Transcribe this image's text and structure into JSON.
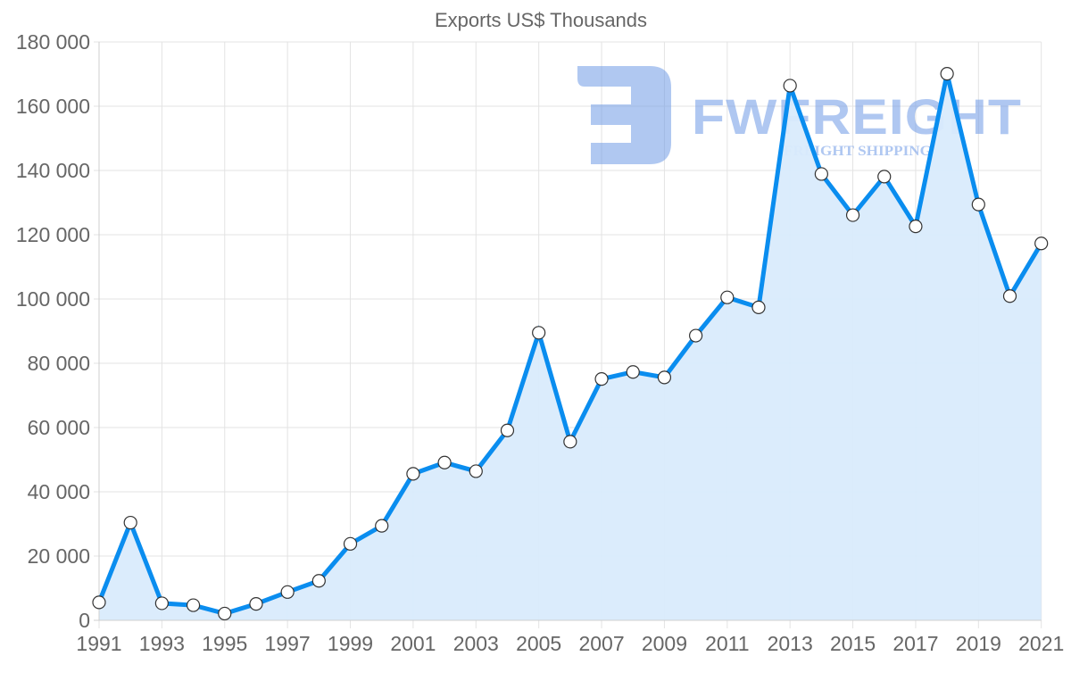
{
  "chart_data": {
    "type": "area",
    "title": "Exports US$ Thousands",
    "xlabel": "",
    "ylabel": "",
    "x": [
      1991,
      1992,
      1993,
      1994,
      1995,
      1996,
      1997,
      1998,
      1999,
      2000,
      2001,
      2002,
      2003,
      2004,
      2005,
      2006,
      2007,
      2008,
      2009,
      2010,
      2011,
      2012,
      2013,
      2014,
      2015,
      2016,
      2017,
      2018,
      2019,
      2020,
      2021
    ],
    "series": [
      {
        "name": "Exports US$ Thousands",
        "values": [
          5600,
          30400,
          5300,
          4700,
          2100,
          5100,
          8800,
          12300,
          23800,
          29400,
          45600,
          49100,
          46400,
          59100,
          89500,
          55600,
          75100,
          77300,
          75600,
          88600,
          100500,
          97400,
          166400,
          138900,
          126100,
          138100,
          122600,
          170100,
          129400,
          100900,
          117300
        ]
      }
    ],
    "ylim": [
      0,
      180000
    ],
    "yticks": [
      0,
      20000,
      40000,
      60000,
      80000,
      100000,
      120000,
      140000,
      160000,
      180000
    ],
    "ytick_labels": [
      "0",
      "20 000",
      "40 000",
      "60 000",
      "80 000",
      "100 000",
      "120 000",
      "140 000",
      "160 000",
      "180 000"
    ],
    "xtick_labels": [
      "1991",
      "1993",
      "1995",
      "1997",
      "1999",
      "2001",
      "2003",
      "2005",
      "2007",
      "2009",
      "2011",
      "2013",
      "2015",
      "2017",
      "2019",
      "2021"
    ],
    "grid": true,
    "legend": "none",
    "colors": {
      "line": "#0a8def",
      "fill": "#d9ebfc",
      "marker_fill": "#ffffff",
      "marker_stroke": "#333333"
    }
  },
  "watermark": {
    "brand": "FWFREIGHT",
    "tagline": "FREIGHT SHIPPING",
    "color": "#6f9ae6"
  }
}
